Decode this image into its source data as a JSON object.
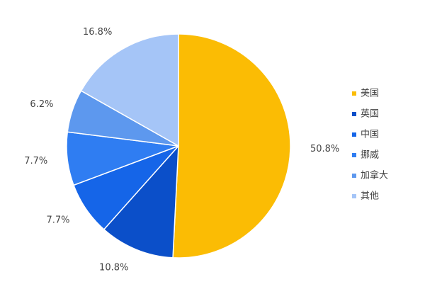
{
  "chart_data": {
    "type": "pie",
    "categories": [
      "美国",
      "英国",
      "中国",
      "挪威",
      "加拿大",
      "其他"
    ],
    "values": [
      50.8,
      10.8,
      7.7,
      7.7,
      6.2,
      16.8
    ],
    "value_labels": [
      "50.8%",
      "10.8%",
      "7.7%",
      "7.7%",
      "6.2%",
      "16.8%"
    ],
    "colors": [
      "#fbbc04",
      "#0b4fc9",
      "#1565e8",
      "#2f7df2",
      "#5d98ee",
      "#a5c5f7"
    ],
    "legend": "right"
  }
}
